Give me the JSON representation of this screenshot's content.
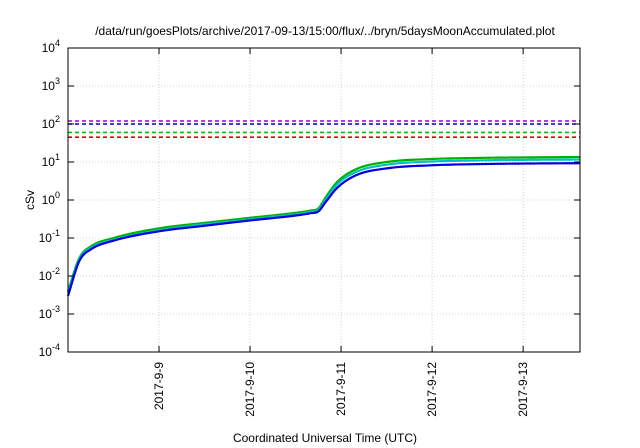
{
  "chart_data": {
    "type": "line",
    "title": "/data/run/goesPlots/archive/2017-09-13/15:00/flux/../bryn/5daysMoonAccumulated.plot",
    "xlabel": "Coordinated Universal Time (UTC)",
    "ylabel": "cSv",
    "y_scale": "log",
    "ylim": [
      0.0001,
      10000
    ],
    "y_ticks": [
      {
        "base": "10",
        "exp": "-4",
        "value": 0.0001
      },
      {
        "base": "10",
        "exp": "-3",
        "value": 0.001
      },
      {
        "base": "10",
        "exp": "-2",
        "value": 0.01
      },
      {
        "base": "10",
        "exp": "-1",
        "value": 0.1
      },
      {
        "base": "10",
        "exp": "0",
        "value": 1
      },
      {
        "base": "10",
        "exp": "1",
        "value": 10
      },
      {
        "base": "10",
        "exp": "2",
        "value": 100
      },
      {
        "base": "10",
        "exp": "3",
        "value": 1000
      },
      {
        "base": "10",
        "exp": "4",
        "value": 10000
      }
    ],
    "xlim": [
      "2017-09-08 00:00",
      "2017-09-13 15:00"
    ],
    "x_ticks": [
      "2017-9-9",
      "2017-9-10",
      "2017-9-11",
      "2017-9-12",
      "2017-9-13"
    ],
    "grid": true,
    "legend": "none",
    "series": [
      {
        "color": "#00b000",
        "style": "solid",
        "points": [
          [
            "2017-09-08 00:00",
            0.004
          ],
          [
            "2017-09-08 03:00",
            0.03
          ],
          [
            "2017-09-08 06:00",
            0.06
          ],
          [
            "2017-09-08 12:00",
            0.1
          ],
          [
            "2017-09-09 00:00",
            0.18
          ],
          [
            "2017-09-09 12:00",
            0.25
          ],
          [
            "2017-09-10 00:00",
            0.34
          ],
          [
            "2017-09-10 12:00",
            0.46
          ],
          [
            "2017-09-10 16:00",
            0.53
          ],
          [
            "2017-09-10 18:00",
            0.6
          ],
          [
            "2017-09-10 20:00",
            1.2
          ],
          [
            "2017-09-10 23:00",
            3
          ],
          [
            "2017-09-11 04:00",
            6.5
          ],
          [
            "2017-09-11 12:00",
            10
          ],
          [
            "2017-09-12 00:00",
            12
          ],
          [
            "2017-09-12 12:00",
            12.8
          ],
          [
            "2017-09-13 00:00",
            13.2
          ],
          [
            "2017-09-13 15:00",
            13.5
          ]
        ]
      },
      {
        "color": "#00c0c0",
        "style": "solid",
        "points": [
          [
            "2017-09-08 00:00",
            0.0035
          ],
          [
            "2017-09-08 03:00",
            0.028
          ],
          [
            "2017-09-08 06:00",
            0.055
          ],
          [
            "2017-09-08 12:00",
            0.09
          ],
          [
            "2017-09-09 00:00",
            0.16
          ],
          [
            "2017-09-09 12:00",
            0.23
          ],
          [
            "2017-09-10 00:00",
            0.31
          ],
          [
            "2017-09-10 12:00",
            0.42
          ],
          [
            "2017-09-10 16:00",
            0.49
          ],
          [
            "2017-09-10 18:00",
            0.55
          ],
          [
            "2017-09-10 20:00",
            1.05
          ],
          [
            "2017-09-10 23:00",
            2.6
          ],
          [
            "2017-09-11 04:00",
            5.5
          ],
          [
            "2017-09-11 12:00",
            8.5
          ],
          [
            "2017-09-12 00:00",
            10.3
          ],
          [
            "2017-09-12 12:00",
            11
          ],
          [
            "2017-09-13 00:00",
            11.4
          ],
          [
            "2017-09-13 15:00",
            11.6
          ]
        ]
      },
      {
        "color": "#0000e0",
        "style": "solid",
        "points": [
          [
            "2017-09-08 00:00",
            0.003
          ],
          [
            "2017-09-08 03:00",
            0.025
          ],
          [
            "2017-09-08 06:00",
            0.05
          ],
          [
            "2017-09-08 12:00",
            0.085
          ],
          [
            "2017-09-09 00:00",
            0.15
          ],
          [
            "2017-09-09 12:00",
            0.21
          ],
          [
            "2017-09-10 00:00",
            0.29
          ],
          [
            "2017-09-10 12:00",
            0.39
          ],
          [
            "2017-09-10 16:00",
            0.45
          ],
          [
            "2017-09-10 18:00",
            0.5
          ],
          [
            "2017-09-10 20:00",
            0.9
          ],
          [
            "2017-09-10 23:00",
            2.1
          ],
          [
            "2017-09-11 04:00",
            4.5
          ],
          [
            "2017-09-11 12:00",
            6.8
          ],
          [
            "2017-09-12 00:00",
            8.2
          ],
          [
            "2017-09-12 12:00",
            8.8
          ],
          [
            "2017-09-13 00:00",
            9.1
          ],
          [
            "2017-09-13 15:00",
            9.3
          ]
        ]
      },
      {
        "color": "#9400d3",
        "style": "dashed",
        "points": [
          [
            "2017-09-08 00:00",
            120
          ],
          [
            "2017-09-13 15:00",
            120
          ]
        ]
      },
      {
        "color": "#0000c0",
        "style": "dashed",
        "points": [
          [
            "2017-09-08 00:00",
            100
          ],
          [
            "2017-09-13 15:00",
            100
          ]
        ]
      },
      {
        "color": "#00c000",
        "style": "dashed",
        "points": [
          [
            "2017-09-08 00:00",
            60
          ],
          [
            "2017-09-13 15:00",
            60
          ]
        ]
      },
      {
        "color": "#e00000",
        "style": "dashed",
        "points": [
          [
            "2017-09-08 00:00",
            45
          ],
          [
            "2017-09-13 15:00",
            45
          ]
        ]
      }
    ]
  }
}
